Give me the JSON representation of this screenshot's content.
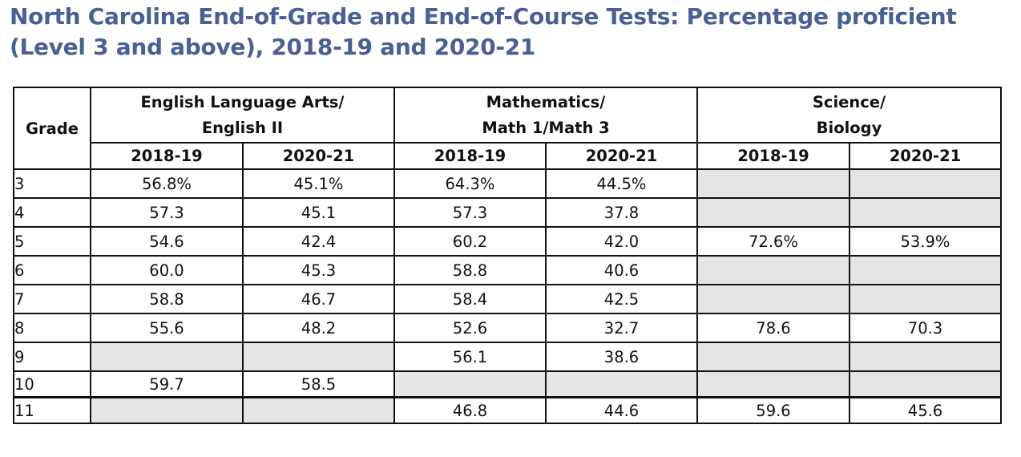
{
  "title": "North Carolina End-of-Grade and End-of-Course Tests: Percentage proficient (Level 3 and above), 2018-19 and 2020-21",
  "table": {
    "grade_header": "Grade",
    "subjects": [
      {
        "line1": "English Language Arts/",
        "line2": "English II"
      },
      {
        "line1": "Mathematics/",
        "line2": "Math 1/Math 3"
      },
      {
        "line1": "Science/",
        "line2": "Biology"
      }
    ],
    "years": [
      "2018-19",
      "2020-21",
      "2018-19",
      "2020-21",
      "2018-19",
      "2020-21"
    ],
    "rows": [
      {
        "grade": "3",
        "values": [
          "56.8%",
          "45.1%",
          "64.3%",
          "44.5%",
          "",
          ""
        ]
      },
      {
        "grade": "4",
        "values": [
          "57.3",
          "45.1",
          "57.3",
          "37.8",
          "",
          ""
        ]
      },
      {
        "grade": "5",
        "values": [
          "54.6",
          "42.4",
          "60.2",
          "42.0",
          "72.6%",
          "53.9%"
        ]
      },
      {
        "grade": "6",
        "values": [
          "60.0",
          "45.3",
          "58.8",
          "40.6",
          "",
          ""
        ]
      },
      {
        "grade": "7",
        "values": [
          "58.8",
          "46.7",
          "58.4",
          "42.5",
          "",
          ""
        ]
      },
      {
        "grade": "8",
        "values": [
          "55.6",
          "48.2",
          "52.6",
          "32.7",
          "78.6",
          "70.3"
        ]
      },
      {
        "grade": "9",
        "values": [
          "",
          "",
          "56.1",
          "38.6",
          "",
          ""
        ]
      },
      {
        "grade": "10",
        "values": [
          "59.7",
          "58.5",
          "",
          "",
          "",
          ""
        ]
      },
      {
        "grade": "11",
        "values": [
          "",
          "",
          "46.8",
          "44.6",
          "59.6",
          "45.6"
        ]
      }
    ]
  },
  "colors": {
    "title": "#4a5f93",
    "empty_cell": "#e6e4e5",
    "border": "#111111"
  }
}
